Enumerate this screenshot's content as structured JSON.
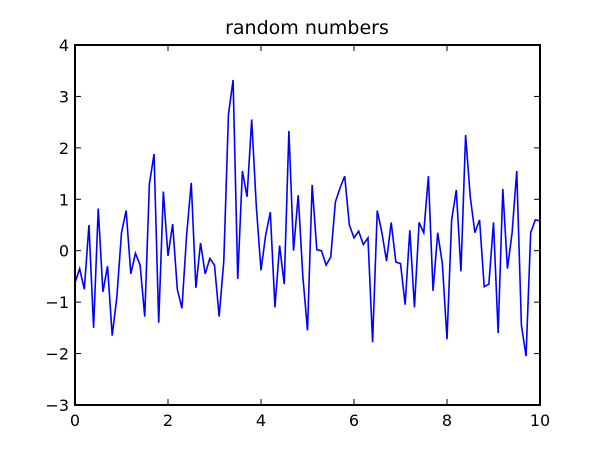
{
  "chart_data": {
    "type": "line",
    "title": "random numbers",
    "xlabel": "",
    "ylabel": "",
    "xlim": [
      0,
      10
    ],
    "ylim": [
      -3,
      4
    ],
    "xticks": [
      0,
      2,
      4,
      6,
      8,
      10
    ],
    "yticks": [
      -3,
      -2,
      -1,
      0,
      1,
      2,
      3,
      4
    ],
    "xtick_labels": [
      "0",
      "2",
      "4",
      "6",
      "8",
      "10"
    ],
    "ytick_labels": [
      "−3",
      "−2",
      "−1",
      "0",
      "1",
      "2",
      "3",
      "4"
    ],
    "grid": false,
    "line_color": "#0000ff",
    "series": [
      {
        "x": [
          0.0,
          0.1,
          0.2,
          0.3,
          0.4,
          0.5,
          0.6,
          0.7,
          0.8,
          0.9,
          1.0,
          1.1,
          1.2,
          1.3,
          1.4,
          1.5,
          1.6,
          1.7,
          1.8,
          1.9,
          2.0,
          2.1,
          2.2,
          2.3,
          2.4,
          2.5,
          2.6,
          2.7,
          2.8,
          2.9,
          3.0,
          3.1,
          3.2,
          3.3,
          3.4,
          3.5,
          3.6,
          3.7,
          3.8,
          3.9,
          4.0,
          4.1,
          4.2,
          4.3,
          4.4,
          4.5,
          4.6,
          4.7,
          4.8,
          4.9,
          5.0,
          5.1,
          5.2,
          5.3,
          5.4,
          5.5,
          5.6,
          5.7,
          5.8,
          5.9,
          6.0,
          6.1,
          6.2,
          6.3,
          6.4,
          6.5,
          6.6,
          6.7,
          6.8,
          6.9,
          7.0,
          7.1,
          7.2,
          7.3,
          7.4,
          7.5,
          7.6,
          7.7,
          7.8,
          7.9,
          8.0,
          8.1,
          8.2,
          8.3,
          8.4,
          8.5,
          8.6,
          8.7,
          8.8,
          8.9,
          9.0,
          9.1,
          9.2,
          9.3,
          9.4,
          9.5,
          9.6,
          9.7,
          9.8,
          9.9,
          10.0
        ],
        "y": [
          -0.62,
          -0.35,
          -0.75,
          0.5,
          -1.5,
          0.82,
          -0.8,
          -0.3,
          -1.65,
          -0.9,
          0.35,
          0.78,
          -0.45,
          -0.05,
          -0.28,
          -1.28,
          1.3,
          1.88,
          -1.4,
          1.15,
          -0.1,
          0.52,
          -0.75,
          -1.12,
          0.3,
          1.32,
          -0.72,
          0.15,
          -0.45,
          -0.15,
          -0.28,
          -1.28,
          -0.2,
          2.65,
          3.32,
          -0.55,
          1.55,
          1.05,
          2.55,
          0.85,
          -0.38,
          0.3,
          0.75,
          -1.1,
          0.1,
          -0.65,
          2.33,
          0.0,
          1.08,
          -0.5,
          -1.55,
          1.28,
          0.02,
          0.0,
          -0.28,
          -0.12,
          0.95,
          1.22,
          1.45,
          0.5,
          0.25,
          0.38,
          0.12,
          0.25,
          -1.78,
          0.78,
          0.35,
          -0.2,
          0.55,
          -0.22,
          -0.25,
          -1.05,
          0.4,
          -1.1,
          0.55,
          0.35,
          1.45,
          -0.78,
          0.35,
          -0.25,
          -1.72,
          0.6,
          1.18,
          -0.4,
          2.25,
          1.05,
          0.35,
          0.6,
          -0.7,
          -0.65,
          0.55,
          -1.6,
          1.2,
          -0.35,
          0.35,
          1.55,
          -1.45,
          -2.05,
          0.35,
          0.6,
          0.58
        ]
      }
    ]
  }
}
